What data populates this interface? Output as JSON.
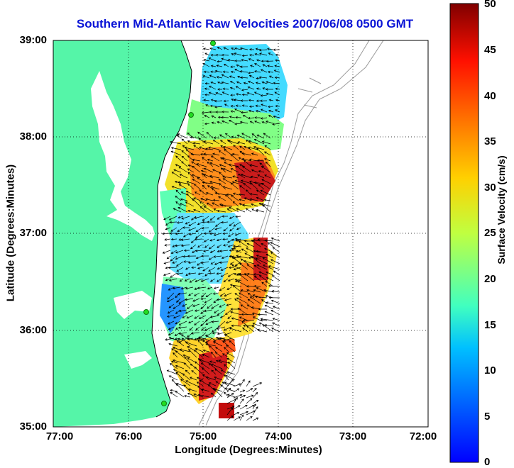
{
  "title": "Southern Mid-Atlantic Raw Velocities 2007/06/08 0500 GMT",
  "xlabel": "Longitude (Degrees:Minutes)",
  "ylabel": "Latitude (Degrees:Minutes)",
  "colorbar_label": "Surface Velocity (cm/s)",
  "chart_data": {
    "type": "heatmap",
    "title": "Southern Mid-Atlantic Raw Velocities 2007/06/08 0500 GMT",
    "xlabel": "Longitude (Degrees:Minutes)",
    "ylabel": "Latitude (Degrees:Minutes)",
    "x_ticks": [
      "77:00",
      "76:00",
      "75:00",
      "74:00",
      "73:00",
      "72:00"
    ],
    "y_ticks": [
      "39:00",
      "38:00",
      "37:00",
      "36:00",
      "35:00"
    ],
    "xlim": [
      -77,
      -72
    ],
    "ylim": [
      35,
      39
    ],
    "grid": "dotted",
    "colorbar": {
      "label": "Surface Velocity (cm/s)",
      "ticks": [
        0,
        5,
        10,
        15,
        20,
        25,
        30,
        35,
        40,
        45,
        50
      ],
      "range": [
        0,
        50
      ],
      "colormap": "jet"
    },
    "land_color": "#55f5a8",
    "station_color": "#22dd22"
  }
}
